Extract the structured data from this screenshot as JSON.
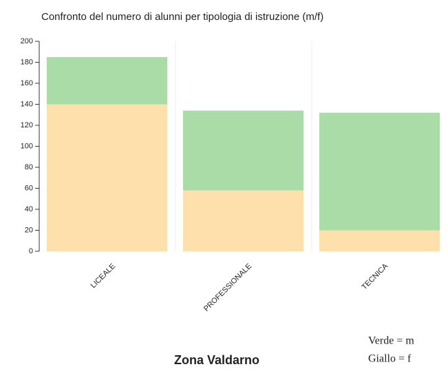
{
  "chart_data": {
    "type": "stacked_bar",
    "title": "Confronto del numero di alunni per tipologia di istruzione (m/f)",
    "subtitle": "Zona Valdarno",
    "categories": [
      "LICEALE",
      "PROFESSIONALE",
      "TECNICA"
    ],
    "series": [
      {
        "name": "Giallo = f",
        "color": "#fde0ab",
        "values": [
          140,
          58,
          20
        ]
      },
      {
        "name": "Verde = m",
        "color": "#a9dca7",
        "values": [
          45,
          76,
          112
        ]
      }
    ],
    "ylim": [
      0,
      200
    ],
    "yticks": [
      0,
      20,
      40,
      60,
      80,
      100,
      120,
      140,
      160,
      180,
      200
    ]
  }
}
